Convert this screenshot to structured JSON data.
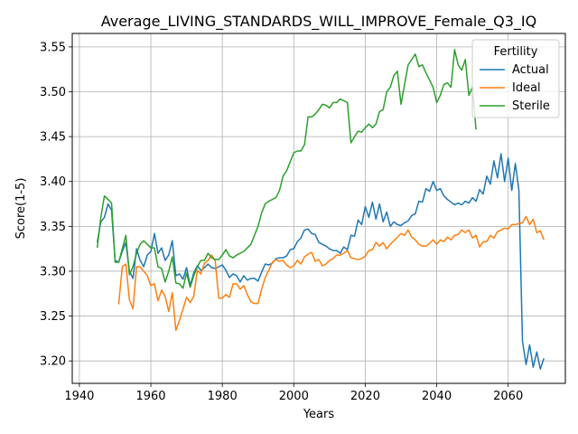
{
  "chart_data": {
    "type": "line",
    "title": "Average_LIVING_STANDARDS_WILL_IMPROVE_Female_Q3_IQ",
    "xlabel": "Years",
    "ylabel": "Score(1-5)",
    "xlim": [
      1938,
      2076
    ],
    "ylim": [
      3.175,
      3.565
    ],
    "xticks": [
      1940,
      1960,
      1980,
      2000,
      2020,
      2040,
      2060
    ],
    "xtick_labels": [
      "1940",
      "1960",
      "1980",
      "2000",
      "2020",
      "2040",
      "2060"
    ],
    "yticks": [
      3.2,
      3.25,
      3.3,
      3.35,
      3.4,
      3.45,
      3.5,
      3.55
    ],
    "ytick_labels": [
      "3.20",
      "3.25",
      "3.30",
      "3.35",
      "3.40",
      "3.45",
      "3.50",
      "3.55"
    ],
    "grid": true,
    "legend": {
      "title": "Fertility",
      "placement": "top-right"
    },
    "series": [
      {
        "name": "Actual",
        "color": "#1f77b4",
        "x": [
          1945,
          1946,
          1947,
          1948,
          1949,
          1950,
          1951,
          1952,
          1953,
          1954,
          1955,
          1956,
          1957,
          1958,
          1959,
          1960,
          1961,
          1962,
          1963,
          1964,
          1965,
          1966,
          1967,
          1968,
          1969,
          1970,
          1971,
          1972,
          1973,
          1974,
          1975,
          1976,
          1977,
          1978,
          1979,
          1980,
          1981,
          1982,
          1983,
          1984,
          1985,
          1986,
          1987,
          1988,
          1989,
          1990,
          1991,
          1992,
          1993,
          1994,
          1995,
          1996,
          1997,
          1998,
          1999,
          2000,
          2001,
          2002,
          2003,
          2004,
          2005,
          2006,
          2007,
          2008,
          2009,
          2010,
          2011,
          2012,
          2013,
          2014,
          2015,
          2016,
          2017,
          2018,
          2019,
          2020,
          2021,
          2022,
          2023,
          2024,
          2025,
          2026,
          2027,
          2028,
          2029,
          2030,
          2031,
          2032,
          2033,
          2034,
          2035,
          2036,
          2037,
          2038,
          2039,
          2040,
          2041,
          2042,
          2043,
          2044,
          2045,
          2046,
          2047,
          2048,
          2049,
          2050,
          2051,
          2052,
          2053,
          2054,
          2055,
          2056,
          2057,
          2058,
          2059,
          2060,
          2061,
          2062,
          2063,
          2064,
          2065,
          2066,
          2067,
          2068,
          2069,
          2070
        ],
        "y": [
          3.332,
          3.355,
          3.36,
          3.375,
          3.368,
          3.312,
          3.31,
          3.322,
          3.332,
          3.3,
          3.292,
          3.325,
          3.312,
          3.305,
          3.318,
          3.322,
          3.342,
          3.32,
          3.326,
          3.312,
          3.318,
          3.334,
          3.295,
          3.297,
          3.291,
          3.304,
          3.284,
          3.298,
          3.306,
          3.301,
          3.304,
          3.308,
          3.304,
          3.303,
          3.305,
          3.307,
          3.301,
          3.293,
          3.297,
          3.295,
          3.288,
          3.295,
          3.29,
          3.292,
          3.292,
          3.289,
          3.299,
          3.308,
          3.307,
          3.309,
          3.314,
          3.315,
          3.315,
          3.317,
          3.324,
          3.325,
          3.333,
          3.337,
          3.346,
          3.347,
          3.342,
          3.341,
          3.332,
          3.33,
          3.328,
          3.325,
          3.323,
          3.323,
          3.32,
          3.327,
          3.324,
          3.34,
          3.339,
          3.357,
          3.352,
          3.372,
          3.36,
          3.377,
          3.358,
          3.375,
          3.355,
          3.366,
          3.35,
          3.355,
          3.352,
          3.351,
          3.354,
          3.356,
          3.362,
          3.364,
          3.378,
          3.377,
          3.392,
          3.389,
          3.4,
          3.39,
          3.392,
          3.384,
          3.38,
          3.377,
          3.374,
          3.376,
          3.374,
          3.378,
          3.376,
          3.382,
          3.378,
          3.391,
          3.386,
          3.406,
          3.397,
          3.423,
          3.404,
          3.431,
          3.4,
          3.426,
          3.39,
          3.42,
          3.39,
          3.222,
          3.196,
          3.218,
          3.193,
          3.21,
          3.191,
          3.203
        ]
      },
      {
        "name": "Ideal",
        "color": "#ff7f0e",
        "x": [
          1951,
          1952,
          1953,
          1954,
          1955,
          1956,
          1957,
          1958,
          1959,
          1960,
          1961,
          1962,
          1963,
          1964,
          1965,
          1966,
          1967,
          1968,
          1969,
          1970,
          1971,
          1972,
          1973,
          1974,
          1975,
          1976,
          1977,
          1978,
          1979,
          1980,
          1981,
          1982,
          1983,
          1984,
          1985,
          1986,
          1987,
          1988,
          1989,
          1990,
          1991,
          1992,
          1993,
          1994,
          1995,
          1996,
          1997,
          1998,
          1999,
          2000,
          2001,
          2002,
          2003,
          2004,
          2005,
          2006,
          2007,
          2008,
          2009,
          2010,
          2011,
          2012,
          2013,
          2014,
          2015,
          2016,
          2017,
          2018,
          2019,
          2020,
          2021,
          2022,
          2023,
          2024,
          2025,
          2026,
          2027,
          2028,
          2029,
          2030,
          2031,
          2032,
          2033,
          2034,
          2035,
          2036,
          2037,
          2038,
          2039,
          2040,
          2041,
          2042,
          2043,
          2044,
          2045,
          2046,
          2047,
          2048,
          2049,
          2050,
          2051,
          2052,
          2053,
          2054,
          2055,
          2056,
          2057,
          2058,
          2059,
          2060,
          2061,
          2062,
          2063,
          2064,
          2065,
          2066,
          2067,
          2068,
          2069,
          2070
        ],
        "y": [
          3.263,
          3.305,
          3.308,
          3.268,
          3.258,
          3.305,
          3.305,
          3.3,
          3.295,
          3.284,
          3.286,
          3.267,
          3.279,
          3.272,
          3.255,
          3.276,
          3.234,
          3.245,
          3.258,
          3.271,
          3.265,
          3.272,
          3.301,
          3.297,
          3.309,
          3.312,
          3.318,
          3.312,
          3.27,
          3.27,
          3.274,
          3.271,
          3.286,
          3.286,
          3.28,
          3.284,
          3.274,
          3.266,
          3.264,
          3.264,
          3.28,
          3.293,
          3.301,
          3.31,
          3.313,
          3.311,
          3.312,
          3.307,
          3.304,
          3.306,
          3.312,
          3.308,
          3.316,
          3.319,
          3.321,
          3.311,
          3.313,
          3.306,
          3.308,
          3.312,
          3.314,
          3.318,
          3.318,
          3.32,
          3.323,
          3.315,
          3.314,
          3.313,
          3.314,
          3.317,
          3.323,
          3.324,
          3.332,
          3.328,
          3.332,
          3.325,
          3.33,
          3.334,
          3.338,
          3.342,
          3.34,
          3.346,
          3.338,
          3.335,
          3.33,
          3.328,
          3.328,
          3.331,
          3.335,
          3.33,
          3.335,
          3.333,
          3.338,
          3.335,
          3.34,
          3.341,
          3.346,
          3.343,
          3.346,
          3.337,
          3.34,
          3.327,
          3.333,
          3.333,
          3.34,
          3.337,
          3.344,
          3.346,
          3.348,
          3.347,
          3.352,
          3.352,
          3.353,
          3.354,
          3.361,
          3.352,
          3.358,
          3.343,
          3.345,
          3.335
        ]
      },
      {
        "name": "Sterile",
        "color": "#2ca02c",
        "x": [
          1945,
          1946,
          1947,
          1948,
          1949,
          1950,
          1951,
          1952,
          1953,
          1954,
          1955,
          1956,
          1957,
          1958,
          1959,
          1960,
          1961,
          1962,
          1963,
          1964,
          1965,
          1966,
          1967,
          1968,
          1969,
          1970,
          1971,
          1972,
          1973,
          1974,
          1975,
          1976,
          1977,
          1978,
          1979,
          1980,
          1981,
          1982,
          1983,
          1984,
          1985,
          1986,
          1987,
          1988,
          1989,
          1990,
          1991,
          1992,
          1993,
          1994,
          1995,
          1996,
          1997,
          1998,
          1999,
          2000,
          2001,
          2002,
          2003,
          2004,
          2005,
          2006,
          2007,
          2008,
          2009,
          2010,
          2011,
          2012,
          2013,
          2014,
          2015,
          2016,
          2017,
          2018,
          2019,
          2020,
          2021,
          2022,
          2023,
          2024,
          2025,
          2026,
          2027,
          2028,
          2029,
          2030,
          2031,
          2032,
          2033,
          2034,
          2035,
          2036,
          2037,
          2038,
          2039,
          2040,
          2041,
          2042,
          2043,
          2044,
          2045,
          2046,
          2047,
          2048,
          2049,
          2050,
          2051
        ],
        "y": [
          3.326,
          3.36,
          3.384,
          3.38,
          3.376,
          3.31,
          3.31,
          3.325,
          3.34,
          3.296,
          3.305,
          3.32,
          3.33,
          3.334,
          3.33,
          3.326,
          3.326,
          3.305,
          3.303,
          3.288,
          3.3,
          3.316,
          3.287,
          3.286,
          3.281,
          3.298,
          3.282,
          3.295,
          3.305,
          3.312,
          3.312,
          3.32,
          3.315,
          3.313,
          3.313,
          3.318,
          3.324,
          3.317,
          3.315,
          3.318,
          3.32,
          3.322,
          3.326,
          3.33,
          3.34,
          3.35,
          3.365,
          3.375,
          3.378,
          3.38,
          3.382,
          3.39,
          3.406,
          3.412,
          3.422,
          3.432,
          3.434,
          3.434,
          3.441,
          3.472,
          3.472,
          3.475,
          3.48,
          3.486,
          3.485,
          3.482,
          3.488,
          3.488,
          3.492,
          3.49,
          3.488,
          3.443,
          3.45,
          3.456,
          3.455,
          3.46,
          3.464,
          3.46,
          3.464,
          3.478,
          3.48,
          3.5,
          3.505,
          3.518,
          3.523,
          3.486,
          3.508,
          3.53,
          3.536,
          3.542,
          3.528,
          3.53,
          3.521,
          3.513,
          3.505,
          3.488,
          3.496,
          3.508,
          3.51,
          3.505,
          3.547,
          3.53,
          3.524,
          3.536,
          3.496,
          3.505,
          3.458
        ]
      }
    ]
  }
}
